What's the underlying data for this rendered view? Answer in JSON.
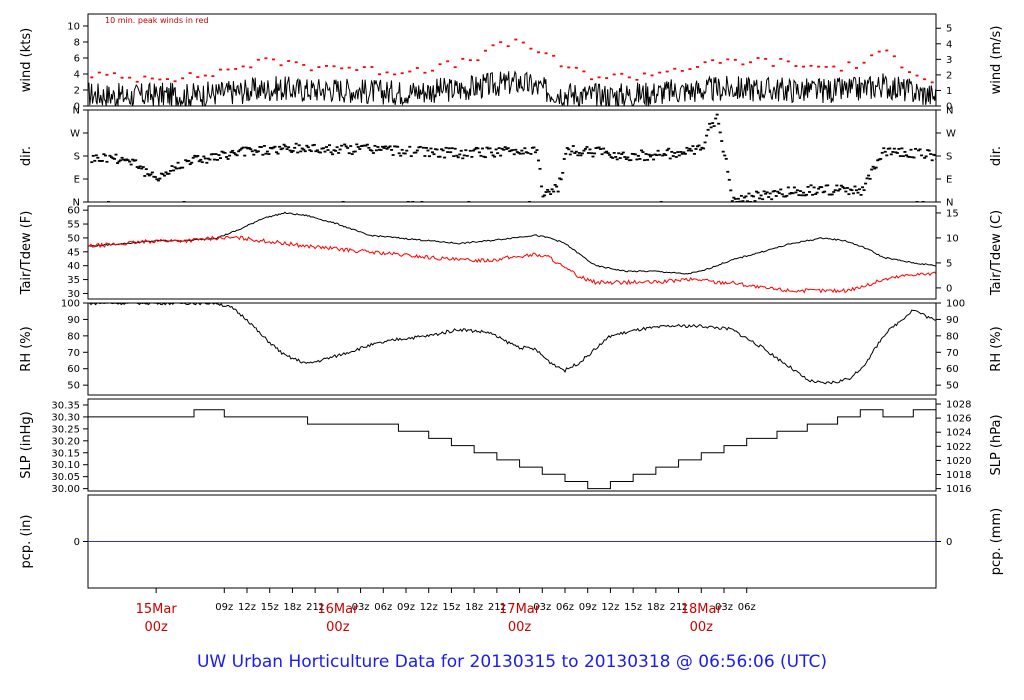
{
  "footer_title": "UW Urban Horticulture Data for 20130315  to  20130318 @ 06:56:06  (UTC)",
  "colors": {
    "black": "#000000",
    "red": "#ff0000",
    "blue": "#3333cc",
    "date_red": "#cc0000",
    "title_blue": "#1a1aff"
  },
  "chart_data": {
    "type": "line",
    "x_range_hours": [
      -9,
      103
    ],
    "x_unit": "hours from 15Mar 00z",
    "x_ticks": [
      {
        "h": 9,
        "label": "09z"
      },
      {
        "h": 12,
        "label": "12z"
      },
      {
        "h": 15,
        "label": "15z"
      },
      {
        "h": 18,
        "label": "18z"
      },
      {
        "h": 21,
        "label": "21z"
      },
      {
        "h": 27,
        "label": "03z"
      },
      {
        "h": 30,
        "label": "06z"
      },
      {
        "h": 33,
        "label": "09z"
      },
      {
        "h": 36,
        "label": "12z"
      },
      {
        "h": 39,
        "label": "15z"
      },
      {
        "h": 42,
        "label": "18z"
      },
      {
        "h": 45,
        "label": "21z"
      },
      {
        "h": 51,
        "label": "03z"
      },
      {
        "h": 54,
        "label": "06z"
      },
      {
        "h": 57,
        "label": "09z"
      },
      {
        "h": 60,
        "label": "12z"
      },
      {
        "h": 63,
        "label": "15z"
      },
      {
        "h": 66,
        "label": "18z"
      },
      {
        "h": 69,
        "label": "21z"
      },
      {
        "h": 75,
        "label": "03z"
      },
      {
        "h": 78,
        "label": "06z"
      }
    ],
    "day_labels": [
      {
        "h": 0,
        "top": "15Mar",
        "bottom": "00z"
      },
      {
        "h": 24,
        "top": "16Mar",
        "bottom": "00z"
      },
      {
        "h": 48,
        "top": "17Mar",
        "bottom": "00z"
      },
      {
        "h": 72,
        "top": "18Mar",
        "bottom": "00z"
      }
    ],
    "panels": [
      {
        "id": "wind",
        "ylabel_left": "wind (kts)",
        "ylabel_right": "wind (m/s)",
        "ylim": [
          0,
          11.5
        ],
        "left_ticks": [
          "0",
          "2",
          "4",
          "6",
          "8",
          "10"
        ],
        "left_values": [
          0,
          2,
          4,
          6,
          8,
          10
        ],
        "right_ticks": [
          "0",
          "1",
          "2",
          "3",
          "4",
          "5"
        ],
        "right_values_kts": [
          0,
          1.944,
          3.888,
          5.832,
          7.776,
          9.72
        ],
        "annotation": "10 min. peak winds in red",
        "series": [
          {
            "name": "",
            "style": "line",
            "color": "#000000",
            "x": [
              -9,
              -4,
              0,
              4,
              8,
              12,
              16,
              20,
              24,
              28,
              32,
              36,
              40,
              44,
              48,
              52,
              56,
              60,
              64,
              68,
              72,
              76,
              80,
              84,
              88,
              92,
              96,
              100,
              103
            ],
            "y": [
              1.5,
              1.2,
              1.4,
              1.3,
              1.6,
              1.9,
              2.2,
              2.0,
              2.1,
              1.8,
              1.7,
              1.9,
              2.1,
              2.6,
              3.0,
              1.8,
              1.4,
              1.3,
              1.5,
              1.8,
              2.0,
              2.2,
              2.1,
              2.0,
              1.9,
              2.0,
              2.6,
              1.8,
              1.2
            ]
          },
          {
            "name": "",
            "style": "dots",
            "color": "#ff0000",
            "x": [
              -9,
              -4,
              0,
              4,
              8,
              12,
              16,
              20,
              24,
              28,
              32,
              36,
              40,
              44,
              48,
              52,
              56,
              60,
              64,
              68,
              72,
              76,
              80,
              84,
              88,
              92,
              96,
              100,
              103
            ],
            "y": [
              4.0,
              3.4,
              3.8,
              3.5,
              4.2,
              5.2,
              5.6,
              5.0,
              5.0,
              4.4,
              4.4,
              4.8,
              5.2,
              7.0,
              8.2,
              5.8,
              4.0,
              3.6,
              3.8,
              4.6,
              5.0,
              5.6,
              5.6,
              5.2,
              4.8,
              5.0,
              6.6,
              4.4,
              3.0
            ]
          }
        ]
      },
      {
        "id": "dir",
        "ylabel_left": "dir.",
        "ylabel_right": "dir.",
        "ylim": [
          0,
          360
        ],
        "left_ticks": [
          "N",
          "E",
          "S",
          "W",
          "N"
        ],
        "left_values": [
          0,
          90,
          180,
          270,
          360
        ],
        "right_ticks": [
          "N",
          "E",
          "S",
          "W",
          "N"
        ],
        "right_values_kts": [
          0,
          90,
          180,
          270,
          360
        ],
        "series": [
          {
            "name": "",
            "style": "dots",
            "color": "#000000",
            "x": [
              -9,
              -6,
              -3,
              -1,
              1,
              4,
              8,
              12,
              16,
              20,
              24,
              28,
              32,
              36,
              40,
              44,
              48,
              50,
              51,
              52,
              53,
              54,
              58,
              62,
              66,
              70,
              72,
              73,
              74,
              76,
              80,
              84,
              86,
              88,
              90,
              93,
              96,
              100,
              103
            ],
            "y": [
              170,
              175,
              160,
              95,
              110,
              165,
              175,
              200,
              205,
              210,
              205,
              210,
              200,
              195,
              190,
              195,
              200,
              210,
              20,
              40,
              60,
              200,
              195,
              180,
              185,
              195,
              205,
              300,
              330,
              5,
              25,
              40,
              45,
              50,
              45,
              40,
              200,
              190,
              180
            ]
          }
        ]
      },
      {
        "id": "temp",
        "ylabel_left": "Tair/Tdew (F)",
        "ylabel_right": "Tair/Tdew (C)",
        "ylim": [
          28,
          61.5
        ],
        "left_ticks": [
          "30",
          "35",
          "40",
          "45",
          "50",
          "55",
          "60"
        ],
        "left_values": [
          30,
          35,
          40,
          45,
          50,
          55,
          60
        ],
        "right_ticks": [
          "0",
          "5",
          "10",
          "15"
        ],
        "right_values_kts": [
          32,
          41,
          50,
          59
        ],
        "series": [
          {
            "name": "",
            "style": "line",
            "color": "#000000",
            "x": [
              -9,
              -4,
              0,
              4,
              8,
              11,
              14,
              17,
              20,
              24,
              28,
              32,
              36,
              40,
              44,
              47,
              50,
              52,
              54,
              56,
              58,
              62,
              66,
              70,
              72,
              74,
              76,
              80,
              84,
              88,
              91,
              94,
              96,
              100,
              103
            ],
            "y": [
              47,
              48,
              49,
              49,
              50,
              53,
              57,
              59,
              58,
              55,
              51,
              50,
              49,
              48,
              49,
              50,
              51,
              50,
              48,
              44,
              40,
              38,
              38,
              37,
              38,
              40,
              42,
              45,
              48,
              50,
              49,
              46,
              43,
              41,
              40
            ]
          },
          {
            "name": "",
            "style": "line",
            "color": "#ff0000",
            "x": [
              -9,
              -4,
              0,
              4,
              8,
              11,
              14,
              17,
              20,
              24,
              28,
              32,
              36,
              40,
              44,
              47,
              50,
              52,
              54,
              56,
              58,
              62,
              66,
              70,
              72,
              74,
              76,
              80,
              84,
              88,
              91,
              94,
              96,
              100,
              103
            ],
            "y": [
              47,
              48,
              49,
              49,
              50,
              50,
              49,
              48,
              47,
              46,
              45,
              44,
              43,
              42,
              42,
              43,
              44,
              43,
              39,
              36,
              34,
              34,
              34,
              35,
              35,
              34,
              34,
              32,
              31,
              31,
              31,
              33,
              35,
              37,
              37
            ]
          }
        ]
      },
      {
        "id": "rh",
        "ylabel_left": "RH (%)",
        "ylabel_right": "RH (%)",
        "ylim": [
          44,
          100
        ],
        "left_ticks": [
          "50",
          "60",
          "70",
          "80",
          "90",
          "100"
        ],
        "left_values": [
          50,
          60,
          70,
          80,
          90,
          100
        ],
        "right_ticks": [
          "50",
          "60",
          "70",
          "80",
          "90",
          "100"
        ],
        "right_values_kts": [
          50,
          60,
          70,
          80,
          90,
          100
        ],
        "series": [
          {
            "name": "",
            "style": "line",
            "color": "#000000",
            "x": [
              -9,
              -4,
              0,
              4,
              8,
              10,
              12,
              14,
              17,
              20,
              24,
              28,
              32,
              36,
              40,
              44,
              46,
              48,
              50,
              52,
              54,
              56,
              60,
              64,
              68,
              72,
              76,
              80,
              84,
              86,
              88,
              90,
              92,
              94,
              96,
              100,
              103
            ],
            "y": [
              100,
              100,
              100,
              100,
              100,
              97,
              90,
              80,
              68,
              63,
              68,
              74,
              78,
              80,
              84,
              82,
              77,
              73,
              72,
              64,
              59,
              64,
              80,
              84,
              86,
              86,
              84,
              73,
              60,
              53,
              51,
              52,
              55,
              65,
              80,
              96,
              89
            ]
          }
        ]
      },
      {
        "id": "slp",
        "ylabel_left": "SLP (inHg)",
        "ylabel_right": "SLP (hPa)",
        "ylim": [
          29.99,
          30.375
        ],
        "left_ticks": [
          "30.00",
          "30.05",
          "30.10",
          "30.15",
          "30.20",
          "30.25",
          "30.30",
          "30.35"
        ],
        "left_values": [
          30.0,
          30.05,
          30.1,
          30.15,
          30.2,
          30.25,
          30.3,
          30.35
        ],
        "right_ticks": [
          "1016",
          "1018",
          "1020",
          "1022",
          "1024",
          "1026",
          "1028"
        ],
        "right_values_kts": [
          30.0,
          30.059,
          30.118,
          30.177,
          30.236,
          30.295,
          30.354
        ],
        "series": [
          {
            "name": "",
            "style": "step",
            "color": "#000000",
            "x": [
              -9,
              5,
              9,
              20,
              32,
              36,
              39,
              42,
              45,
              48,
              51,
              54,
              57,
              60,
              63,
              66,
              69,
              72,
              75,
              78,
              82,
              86,
              90,
              93,
              96,
              100,
              103
            ],
            "y": [
              30.3,
              30.33,
              30.3,
              30.27,
              30.24,
              30.21,
              30.18,
              30.15,
              30.12,
              30.09,
              30.06,
              30.03,
              30.0,
              30.03,
              30.06,
              30.09,
              30.12,
              30.15,
              30.18,
              30.21,
              30.24,
              30.27,
              30.3,
              30.33,
              30.3,
              30.33,
              30.36
            ]
          }
        ]
      },
      {
        "id": "pcp",
        "ylabel_left": "pcp. (in)",
        "ylabel_right": "pcp. (mm)",
        "ylim": [
          -1,
          1
        ],
        "left_ticks": [
          "0"
        ],
        "left_values": [
          0
        ],
        "right_ticks": [
          "0"
        ],
        "right_values_kts": [
          0
        ],
        "series": [
          {
            "name": "",
            "style": "line",
            "color": "#3333cc",
            "x": [
              -9,
              103
            ],
            "y": [
              0,
              0
            ]
          }
        ]
      }
    ]
  }
}
